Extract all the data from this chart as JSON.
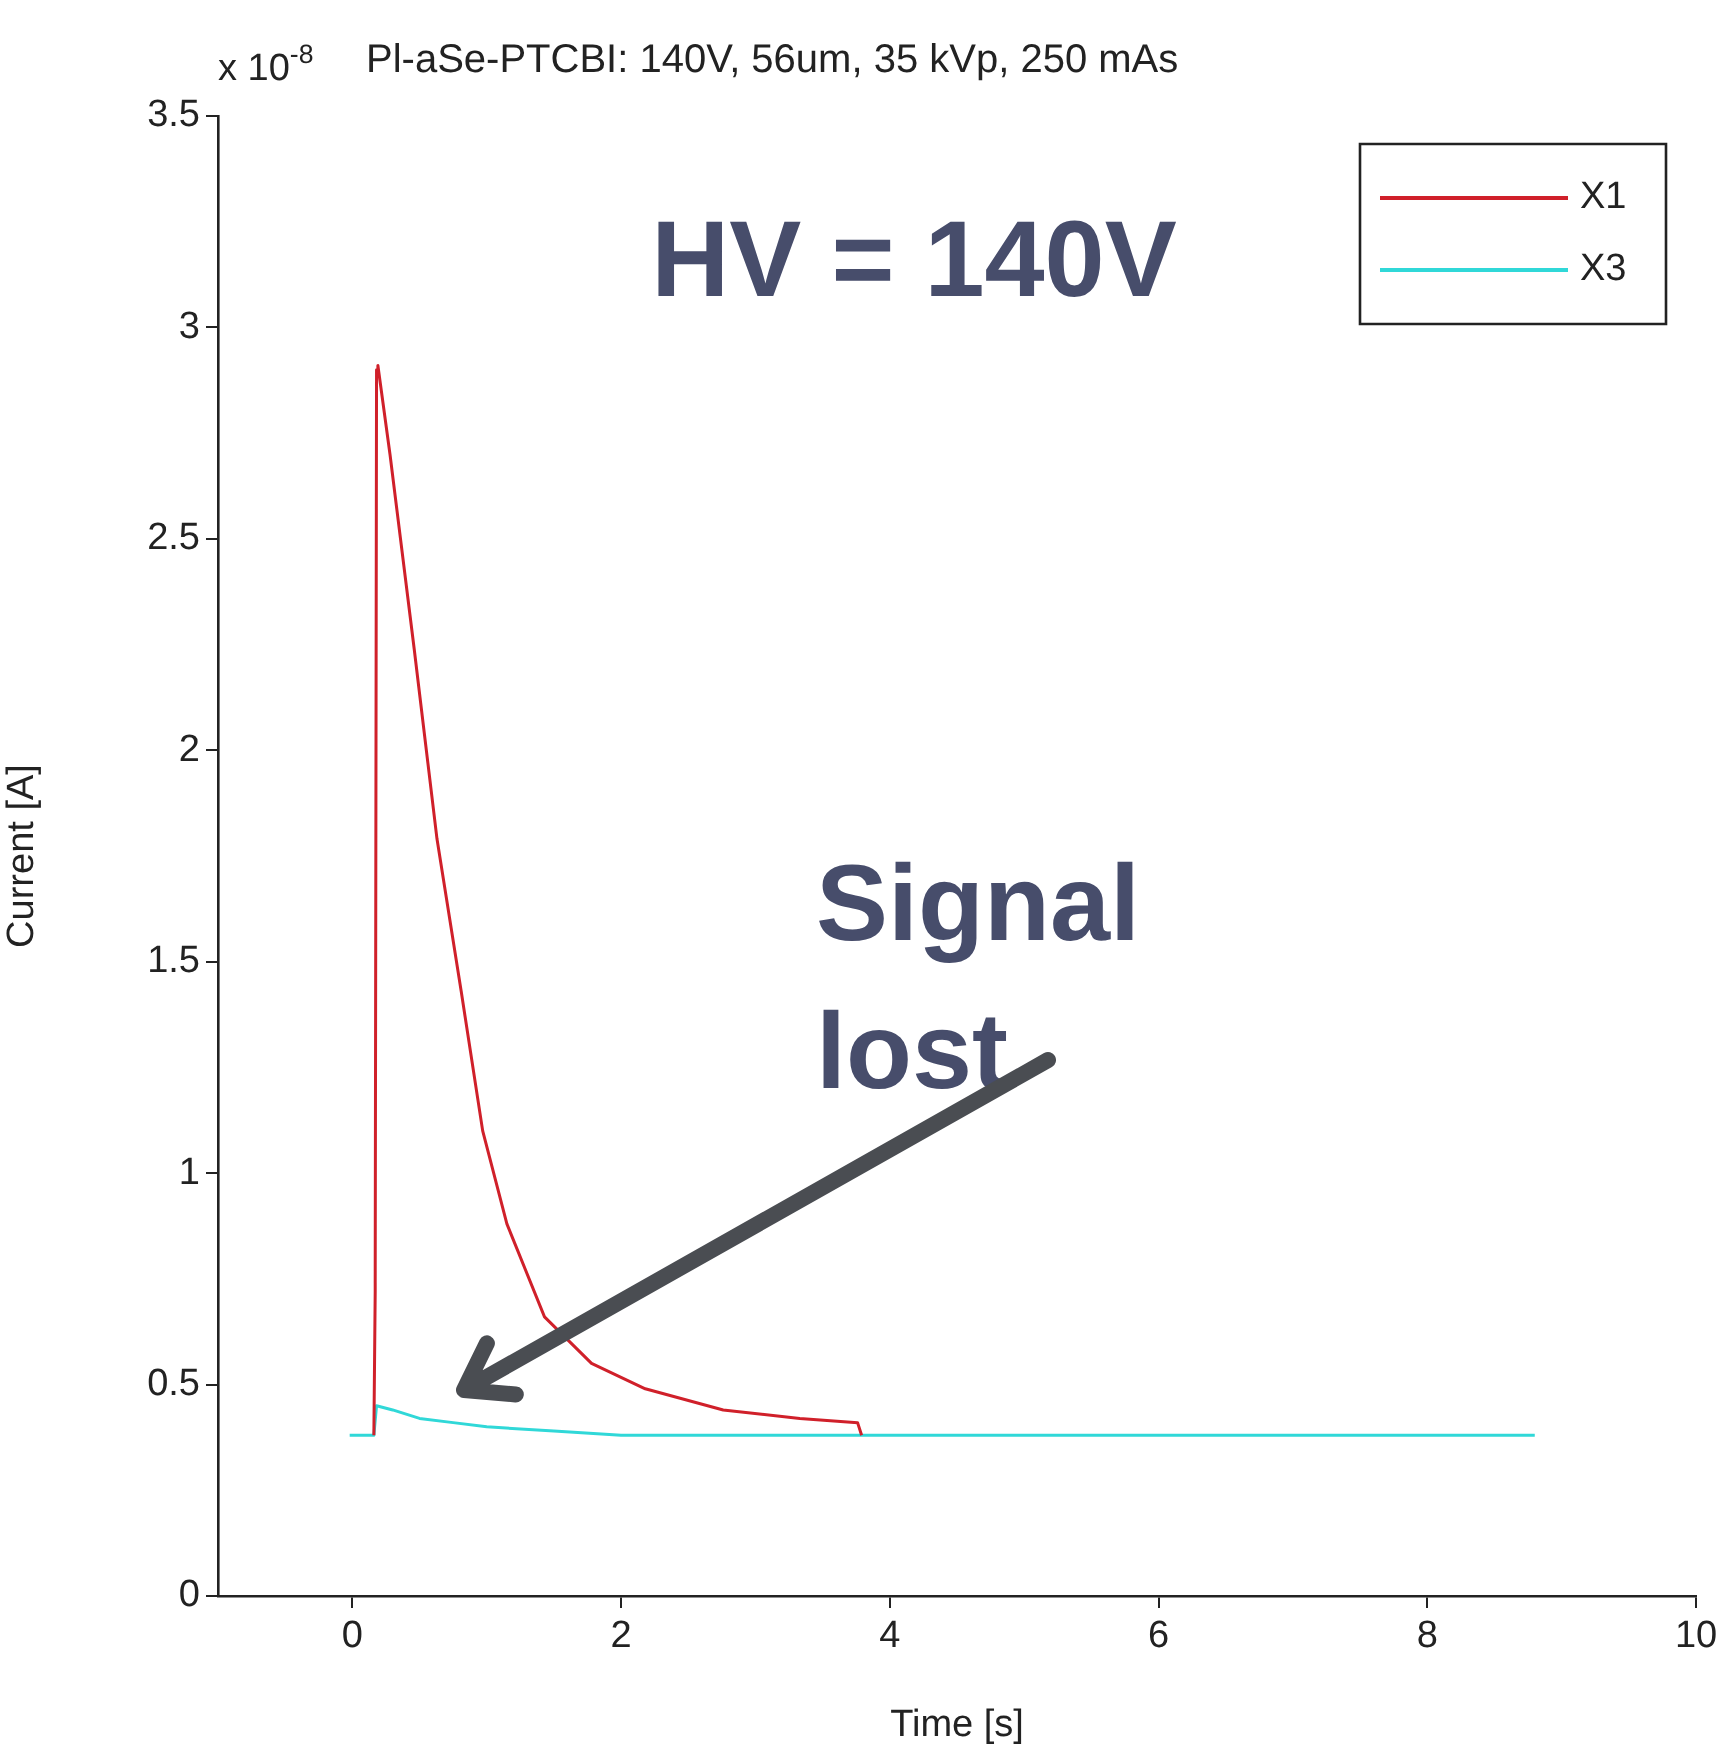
{
  "chart_data": {
    "type": "line",
    "title": "Pl-aSe-PTCBI: 140V, 56um, 35 kVp, 250 mAs",
    "xlabel": "Time [s]",
    "ylabel": "Current [A]",
    "annotations": [
      "x 10$^{-8}$",
      "HV = 140V",
      "Signal lost"
    ],
    "xlim": [
      -1,
      10
    ],
    "xticks": [
      0,
      2,
      4,
      6,
      8,
      10
    ],
    "ylim": [
      0,
      3.5
    ],
    "yticks": [
      0,
      0.5,
      1,
      1.5,
      2,
      2.5,
      3,
      3.5
    ],
    "grid": false,
    "legend": "top right",
    "marker": "none",
    "line_style": "solid",
    "series": [
      {
        "name": "X1",
        "color": "#d0202a",
        "x": [
          0.16,
          0.17,
          0.17,
          0.18,
          0.19,
          0.28,
          0.46,
          0.63,
          0.81,
          0.97,
          1.15,
          1.43,
          1.78,
          2.18,
          2.76,
          3.33,
          3.76,
          3.79
        ],
        "values": [
          0.38,
          0.72,
          0.74,
          2.9,
          2.91,
          2.7,
          2.24,
          1.79,
          1.43,
          1.1,
          0.88,
          0.66,
          0.55,
          0.49,
          0.44,
          0.42,
          0.41,
          0.38
        ]
      },
      {
        "name": "X3",
        "color": "#30d8d8",
        "x": [
          -0.02,
          0.16,
          0.18,
          0.3,
          0.5,
          0.75,
          1.0,
          1.5,
          2.0,
          3.0,
          4.0,
          5.0,
          6.0,
          7.0,
          8.0,
          8.8
        ],
        "values": [
          0.38,
          0.38,
          0.45,
          0.44,
          0.42,
          0.41,
          0.4,
          0.39,
          0.38,
          0.38,
          0.38,
          0.38,
          0.38,
          0.38,
          0.38,
          0.38
        ]
      }
    ]
  }
}
